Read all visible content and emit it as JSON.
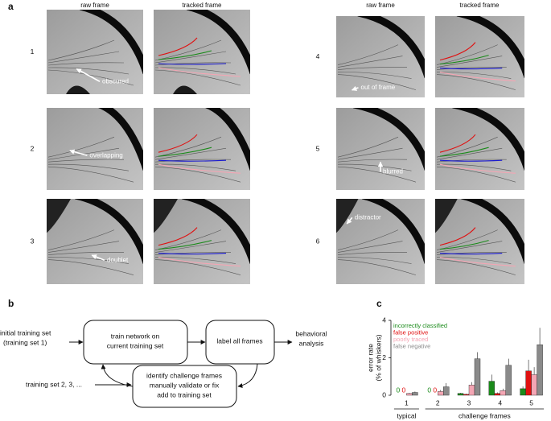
{
  "panel_labels": [
    "a",
    "b",
    "c"
  ],
  "frames": {
    "column_headers": [
      "raw frame",
      "tracked frame",
      "raw frame",
      "tracked frame"
    ],
    "rows": [
      {
        "number": "1",
        "annotation": "obscured"
      },
      {
        "number": "2",
        "annotation": "overlapping"
      },
      {
        "number": "3",
        "annotation": "doublet"
      },
      {
        "number": "4",
        "annotation": "out of frame"
      },
      {
        "number": "5",
        "annotation": "blurred"
      },
      {
        "number": "6",
        "annotation": "distractor"
      }
    ]
  },
  "diagram": {
    "input": [
      "initial training set",
      "(training set 1)"
    ],
    "train": [
      "train network on",
      "current training set"
    ],
    "label": "label all frames",
    "output": [
      "behavioral",
      "analysis"
    ],
    "challenge": [
      "identify challenge frames",
      "manually validate or fix",
      "add to training set"
    ],
    "loop_input": "training set 2, 3, ..."
  },
  "chart_data": {
    "type": "bar",
    "ylabel": [
      "error rate",
      "(% of whiskers)"
    ],
    "categories": [
      "1",
      "2",
      "3",
      "4",
      "5"
    ],
    "x_groups": [
      "typical",
      "challenge frames"
    ],
    "ylim": [
      0,
      4
    ],
    "yticks": [
      0,
      2,
      4
    ],
    "series": [
      {
        "name": "incorrectly classified",
        "color": "#1a8a1a",
        "values": [
          0,
          0,
          0.1,
          0.75,
          0.35
        ],
        "errors": [
          0,
          0,
          0.03,
          0.35,
          0.12
        ]
      },
      {
        "name": "false positive",
        "color": "#e01010",
        "values": [
          0,
          0,
          0.05,
          0.1,
          1.3
        ],
        "errors": [
          0,
          0,
          0.03,
          0.05,
          0.6
        ]
      },
      {
        "name": "poorly traced",
        "color": "#f4a6b4",
        "values": [
          0.1,
          0.2,
          0.55,
          0.25,
          1.1
        ],
        "errors": [
          0.03,
          0.08,
          0.15,
          0.1,
          0.4
        ]
      },
      {
        "name": "false negative",
        "color": "#8a8a8a",
        "values": [
          0.15,
          0.45,
          1.95,
          1.6,
          2.7
        ],
        "errors": [
          0.05,
          0.2,
          0.35,
          0.35,
          0.9
        ]
      }
    ]
  }
}
